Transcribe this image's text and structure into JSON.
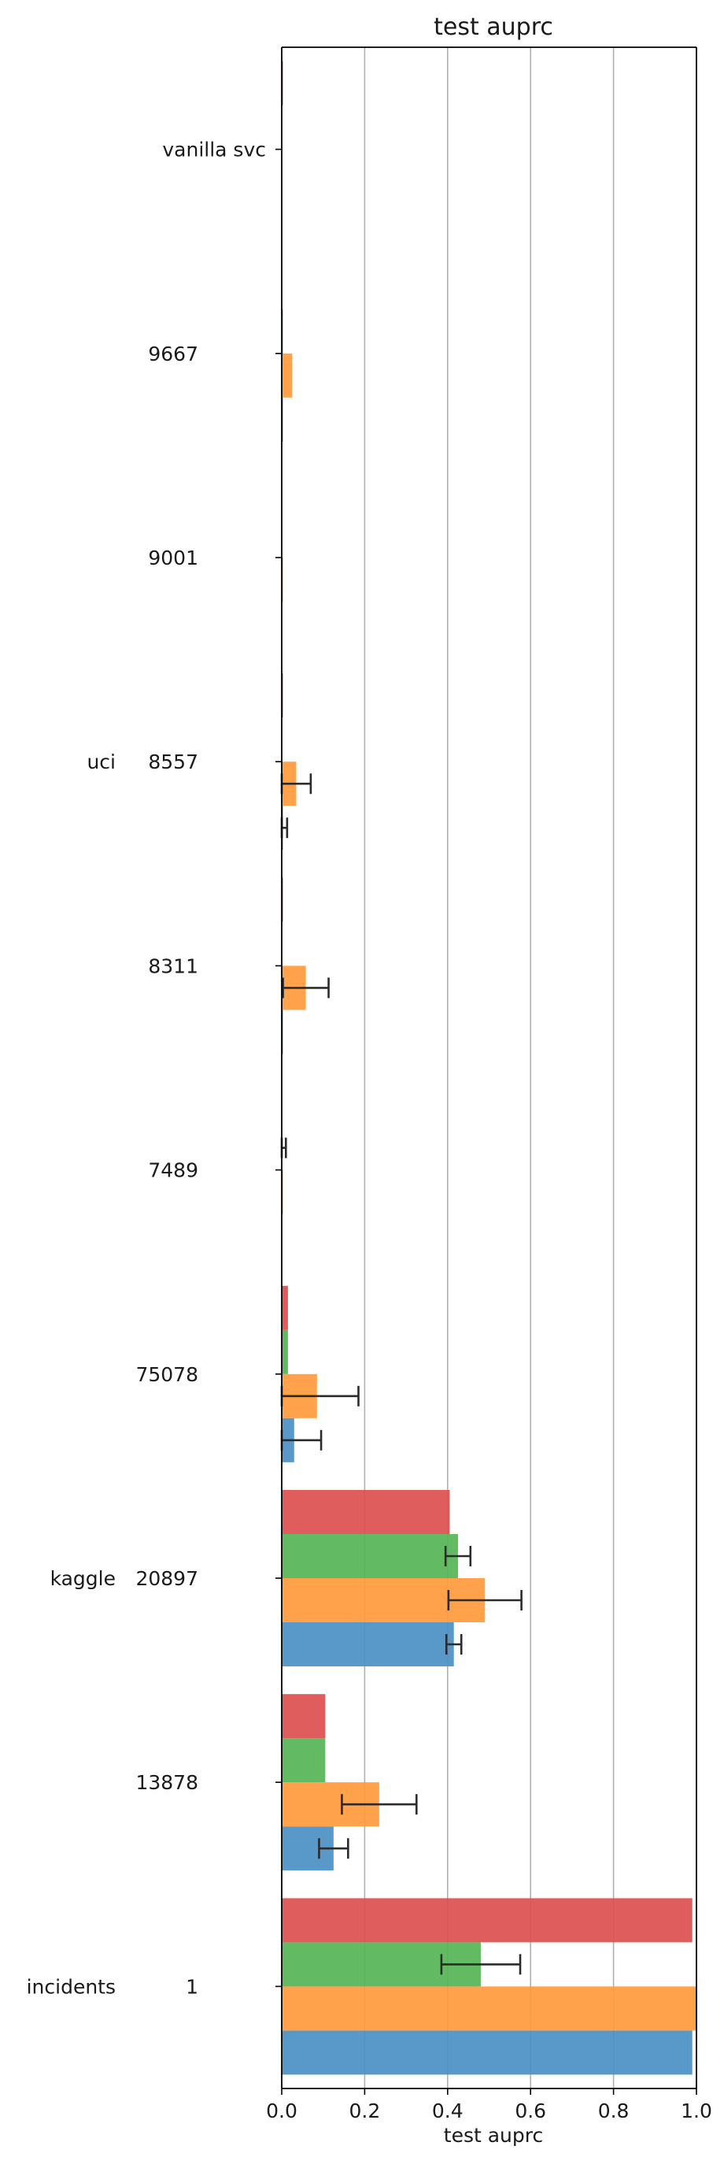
{
  "chart_data": {
    "type": "bar",
    "orientation": "horizontal",
    "title": "test auprc",
    "xlabel": "test auprc",
    "ylabel": "",
    "xlim": [
      0,
      1.0
    ],
    "x_ticks": [
      "0.0",
      "0.2",
      "0.4",
      "0.6",
      "0.8",
      "1.0"
    ],
    "grid": "vertical",
    "groups": [
      {
        "dataset": "incidents",
        "name": "1"
      },
      {
        "dataset": "",
        "name": "13878"
      },
      {
        "dataset": "kaggle",
        "name": "20897"
      },
      {
        "dataset": "",
        "name": "75078"
      },
      {
        "dataset": "",
        "name": "7489"
      },
      {
        "dataset": "",
        "name": "8311"
      },
      {
        "dataset": "uci",
        "name": "8557"
      },
      {
        "dataset": "",
        "name": "9001"
      },
      {
        "dataset": "",
        "name": "9667"
      },
      {
        "dataset": "vanilla svc",
        "name": ""
      }
    ],
    "series": [
      {
        "color": "#4a90c4",
        "values": [
          0.99,
          0.125,
          0.415,
          0.03,
          0.0,
          0.003,
          0.003,
          0.0,
          0.003,
          0.0
        ],
        "errors": [
          null,
          0.035,
          0.018,
          0.065,
          null,
          null,
          0.01,
          null,
          null,
          null
        ]
      },
      {
        "color": "#ff9a3c",
        "values": [
          1.0,
          0.235,
          0.49,
          0.085,
          0.003,
          0.058,
          0.035,
          0.003,
          0.025,
          0.0
        ],
        "errors": [
          null,
          0.09,
          0.088,
          0.1,
          null,
          0.055,
          0.035,
          null,
          null,
          null
        ]
      },
      {
        "color": "#55b555",
        "values": [
          0.48,
          0.105,
          0.425,
          0.015,
          0.0,
          0.0,
          0.0,
          0.0,
          0.003,
          0.0
        ],
        "errors": [
          0.095,
          null,
          0.03,
          null,
          0.01,
          null,
          null,
          null,
          null,
          null
        ]
      },
      {
        "color": "#dd4f4f",
        "values": [
          0.99,
          0.105,
          0.405,
          0.015,
          0.0,
          0.003,
          0.003,
          0.0,
          0.0,
          0.003
        ],
        "errors": [
          null,
          null,
          null,
          null,
          null,
          null,
          null,
          null,
          null,
          null
        ]
      }
    ]
  }
}
